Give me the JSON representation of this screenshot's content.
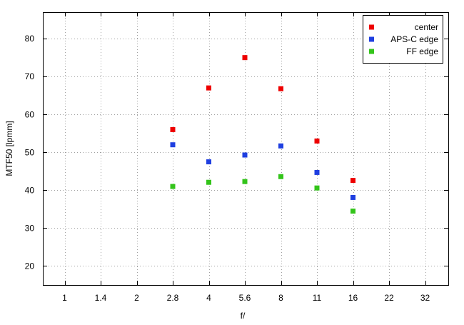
{
  "chart_data": {
    "type": "scatter",
    "xlabel": "f/",
    "ylabel": "MTF50 [lpmm]",
    "categories": [
      "1",
      "1.4",
      "2",
      "2.8",
      "4",
      "5.6",
      "8",
      "11",
      "16",
      "22",
      "32"
    ],
    "ylim": [
      15,
      87
    ],
    "yticks": [
      20,
      30,
      40,
      50,
      60,
      70,
      80
    ],
    "grid": true,
    "legend_position": "top-right",
    "series": [
      {
        "name": "center",
        "color": "#ee0000",
        "points": [
          [
            "2.8",
            56
          ],
          [
            "4",
            67
          ],
          [
            "5.6",
            75
          ],
          [
            "8",
            66.8
          ],
          [
            "11",
            53
          ],
          [
            "16",
            42.6
          ]
        ]
      },
      {
        "name": "APS-C edge",
        "color": "#1f3fe0",
        "points": [
          [
            "2.8",
            52
          ],
          [
            "4",
            47.5
          ],
          [
            "5.6",
            49.3
          ],
          [
            "8",
            51.7
          ],
          [
            "11",
            44.7
          ],
          [
            "16",
            38.1
          ]
        ]
      },
      {
        "name": "FF edge",
        "color": "#33c41a",
        "points": [
          [
            "2.8",
            41
          ],
          [
            "4",
            42.1
          ],
          [
            "5.6",
            42.3
          ],
          [
            "8",
            43.6
          ],
          [
            "11",
            40.6
          ],
          [
            "16",
            34.5
          ]
        ]
      }
    ]
  }
}
